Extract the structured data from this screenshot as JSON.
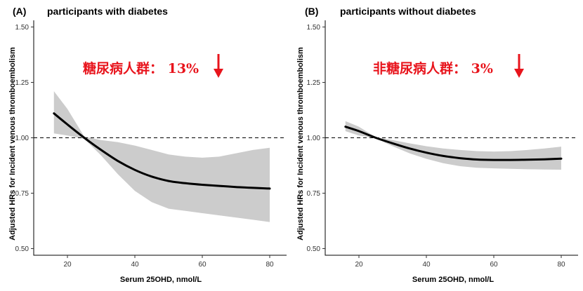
{
  "chart_data": [
    {
      "type": "line",
      "panel_label": "(A)",
      "title": "participants with diabetes",
      "xlabel": "Serum 25OHD, nmol/L",
      "ylabel": "Adjusted HRs for Incident venous thromboembolism",
      "xlim": [
        10,
        85
      ],
      "ylim": [
        0.47,
        1.53
      ],
      "x_ticks": [
        "20",
        "40",
        "60",
        "80"
      ],
      "y_ticks": [
        "0.50",
        "0.75",
        "1.00",
        "1.25",
        "1.50"
      ],
      "reference_line": 1.0,
      "x": [
        16,
        20,
        25,
        30,
        35,
        40,
        45,
        50,
        55,
        60,
        65,
        70,
        75,
        80
      ],
      "hr": [
        1.11,
        1.06,
        1.0,
        0.945,
        0.895,
        0.855,
        0.825,
        0.805,
        0.795,
        0.788,
        0.783,
        0.778,
        0.774,
        0.771
      ],
      "ci_lower": [
        1.02,
        1.01,
        0.995,
        0.92,
        0.835,
        0.76,
        0.71,
        0.68,
        0.67,
        0.66,
        0.65,
        0.64,
        0.63,
        0.62
      ],
      "ci_upper": [
        1.21,
        1.13,
        1.005,
        0.99,
        0.98,
        0.965,
        0.945,
        0.925,
        0.915,
        0.91,
        0.915,
        0.93,
        0.945,
        0.955
      ],
      "annotation": "糖尿病人群：  13%",
      "annotation_arrow": "down-arrow",
      "annotation_color": "#e8141c",
      "line_color": "#000000",
      "band_color": "#cccccc"
    },
    {
      "type": "line",
      "panel_label": "(B)",
      "title": "participants without diabetes",
      "xlabel": "Serum 25OHD, nmol/L",
      "ylabel": "Adjusted HRs for Incident venous thromboembolism",
      "xlim": [
        10,
        85
      ],
      "ylim": [
        0.47,
        1.53
      ],
      "x_ticks": [
        "20",
        "40",
        "60",
        "80"
      ],
      "y_ticks": [
        "0.50",
        "0.75",
        "1.00",
        "1.25",
        "1.50"
      ],
      "reference_line": 1.0,
      "x": [
        16,
        20,
        25,
        30,
        35,
        40,
        45,
        50,
        55,
        60,
        65,
        70,
        75,
        80
      ],
      "hr": [
        1.05,
        1.03,
        1.0,
        0.975,
        0.952,
        0.933,
        0.918,
        0.908,
        0.902,
        0.9,
        0.9,
        0.901,
        0.903,
        0.906
      ],
      "ci_lower": [
        1.03,
        1.01,
        0.997,
        0.962,
        0.93,
        0.905,
        0.885,
        0.872,
        0.865,
        0.862,
        0.86,
        0.858,
        0.857,
        0.856
      ],
      "ci_upper": [
        1.075,
        1.05,
        1.003,
        0.99,
        0.975,
        0.962,
        0.952,
        0.945,
        0.94,
        0.938,
        0.94,
        0.945,
        0.952,
        0.96
      ],
      "annotation": "非糖尿病人群：  3%",
      "annotation_arrow": "down-arrow",
      "annotation_color": "#e8141c",
      "line_color": "#000000",
      "band_color": "#cccccc"
    }
  ]
}
